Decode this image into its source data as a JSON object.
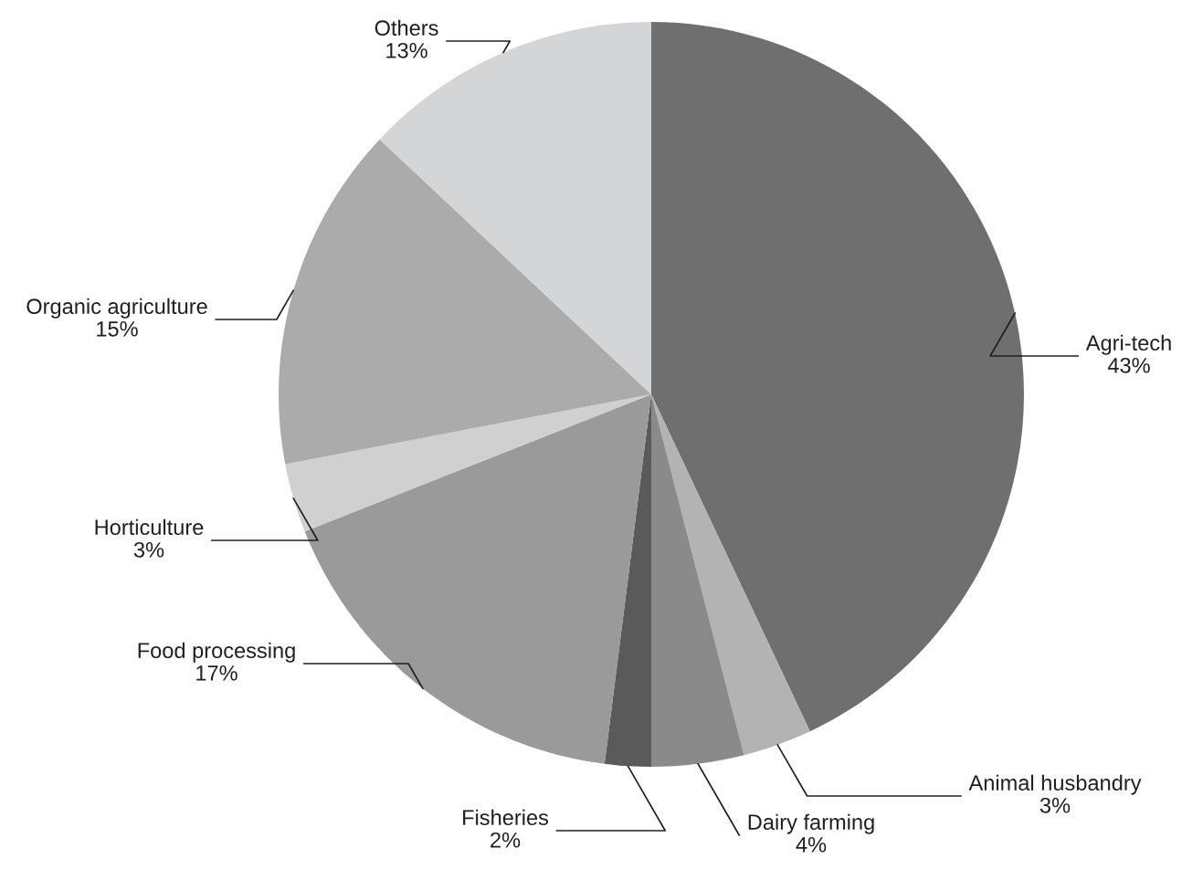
{
  "chart_data": {
    "type": "pie",
    "categories": [
      "Agri-tech",
      "Animal husbandry",
      "Dairy farming",
      "Fisheries",
      "Food processing",
      "Horticulture",
      "Organic agriculture",
      "Others"
    ],
    "values": [
      43,
      3,
      4,
      2,
      17,
      3,
      15,
      13
    ],
    "value_labels": [
      "43%",
      "3%",
      "4%",
      "2%",
      "17%",
      "3%",
      "15%",
      "13%"
    ],
    "colors": [
      "#6f6f6f",
      "#b3b3b3",
      "#8a8a8a",
      "#5a5a5a",
      "#999a99",
      "#cfd0cf",
      "#ababab",
      "#d4d5d6"
    ]
  }
}
